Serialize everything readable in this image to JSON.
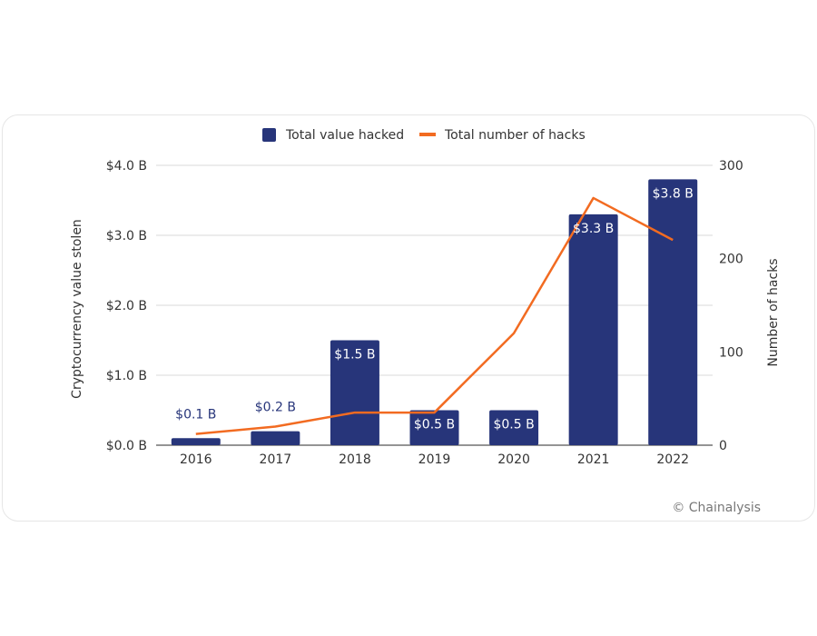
{
  "chart_data": {
    "type": "bar",
    "categories": [
      "2016",
      "2017",
      "2018",
      "2019",
      "2020",
      "2021",
      "2022"
    ],
    "series": [
      {
        "name": "Total value hacked",
        "kind": "bar",
        "axis": "left",
        "color": "#27357a",
        "values": [
          0.1,
          0.2,
          1.5,
          0.5,
          0.5,
          3.3,
          3.8
        ],
        "labels": [
          "$0.1 B",
          "$0.2 B",
          "$1.5 B",
          "$0.5 B",
          "$0.5 B",
          "$3.3 B",
          "$3.8 B"
        ]
      },
      {
        "name": "Total number of hacks",
        "kind": "line",
        "axis": "right",
        "color": "#f26b21",
        "values": [
          12,
          20,
          35,
          35,
          120,
          265,
          220
        ]
      }
    ],
    "left_axis": {
      "label": "Cryptocurrency value stolen",
      "ylim": [
        0,
        4
      ],
      "ticks": [
        0,
        1,
        2,
        3,
        4
      ],
      "tick_labels": [
        "$0.0 B",
        "$1.0 B",
        "$2.0 B",
        "$3.0 B",
        "$4.0 B"
      ]
    },
    "right_axis": {
      "label": "Number of hacks",
      "ylim": [
        0,
        300
      ],
      "ticks": [
        0,
        100,
        200,
        300
      ],
      "tick_labels": [
        "0",
        "100",
        "200",
        "300"
      ]
    },
    "grid": true,
    "legend_position": "top-center"
  },
  "credit": "© Chainalysis"
}
